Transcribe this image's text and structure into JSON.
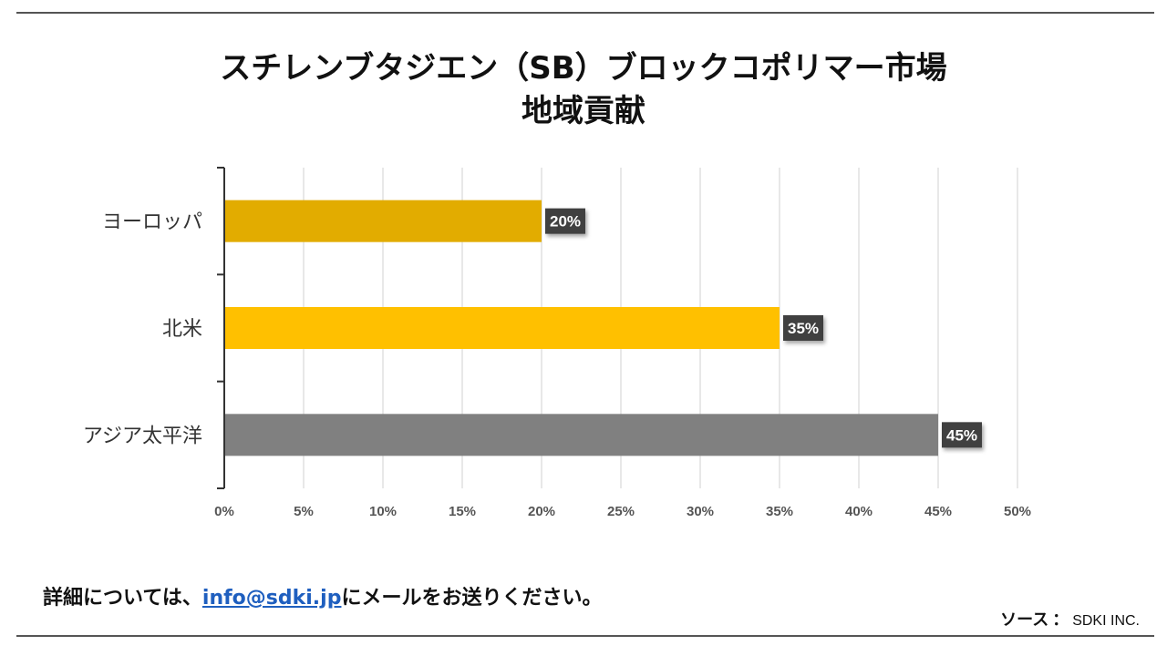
{
  "title": {
    "line1": "スチレンブタジエン（SB）ブロックコポリマー市場",
    "line2": "地域貢献"
  },
  "chart_data": {
    "type": "bar",
    "orientation": "horizontal",
    "categories": [
      "ヨーロッパ",
      "北米",
      "アジア太平洋"
    ],
    "values": [
      20,
      35,
      45
    ],
    "data_labels": [
      "20%",
      "35%",
      "45%"
    ],
    "colors": [
      "#e2ac00",
      "#ffc000",
      "#808080"
    ],
    "xlim": [
      0,
      50
    ],
    "xticks": [
      0,
      5,
      10,
      15,
      20,
      25,
      30,
      35,
      40,
      45,
      50
    ],
    "xtick_labels": [
      "0%",
      "5%",
      "10%",
      "15%",
      "20%",
      "25%",
      "30%",
      "35%",
      "40%",
      "45%",
      "50%"
    ],
    "grid": true,
    "legend": "none"
  },
  "footer": {
    "prefix": "詳細については、",
    "email": "info@sdki.jp",
    "suffix": "にメールをお送りください。",
    "source_label": "ソース",
    "source_colon": "：",
    "source_value": "SDKI INC."
  }
}
